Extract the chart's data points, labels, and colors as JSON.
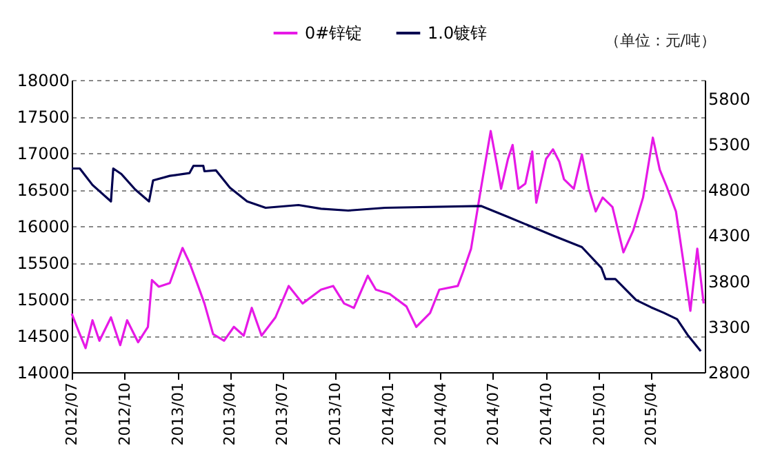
{
  "chart_data": {
    "type": "line",
    "legend": "top",
    "grid": "y",
    "line_style": "solid",
    "marker": "none",
    "annotations": [
      "（单位：元/吨）"
    ],
    "xlim": [
      "2012-07-01",
      "2015-07-03"
    ],
    "xticks": [
      {
        "value": "2012-07-01",
        "label": "2012/07"
      },
      {
        "value": "2012-10-01",
        "label": "2012/10"
      },
      {
        "value": "2013-01-01",
        "label": "2013/01"
      },
      {
        "value": "2013-04-01",
        "label": "2013/04"
      },
      {
        "value": "2013-07-01",
        "label": "2013/07"
      },
      {
        "value": "2013-10-01",
        "label": "2013/10"
      },
      {
        "value": "2014-01-01",
        "label": "2014/01"
      },
      {
        "value": "2014-04-01",
        "label": "2014/04"
      },
      {
        "value": "2014-07-01",
        "label": "2014/07"
      },
      {
        "value": "2014-10-01",
        "label": "2014/10"
      },
      {
        "value": "2015-01-01",
        "label": "2015/01"
      },
      {
        "value": "2015-04-01",
        "label": "2015/04"
      }
    ],
    "ylim": [
      14000,
      18000
    ],
    "yticks": [
      14000,
      14500,
      15000,
      15500,
      16000,
      16500,
      17000,
      17500,
      18000
    ],
    "y2lim": [
      2800,
      6000
    ],
    "y2ticks": [
      2800,
      3300,
      3800,
      4300,
      4800,
      5300,
      5800
    ],
    "series": [
      {
        "name": "0#锌锭",
        "color": "#e619e6",
        "x": [
          "2012-07-01",
          "2012-07-13",
          "2012-07-25",
          "2012-08-06",
          "2012-08-18",
          "2012-09-07",
          "2012-09-23",
          "2012-10-05",
          "2012-10-24",
          "2012-11-10",
          "2012-11-17",
          "2012-11-29",
          "2012-12-18",
          "2013-01-09",
          "2013-01-21",
          "2013-02-05",
          "2013-02-16",
          "2013-03-03",
          "2013-03-22",
          "2013-04-08",
          "2013-04-25",
          "2013-05-09",
          "2013-05-26",
          "2013-06-19",
          "2013-07-12",
          "2013-08-05",
          "2013-09-06",
          "2013-09-27",
          "2013-10-16",
          "2013-11-02",
          "2013-11-26",
          "2013-12-10",
          "2014-01-03",
          "2014-02-01",
          "2014-02-18",
          "2014-03-14",
          "2014-03-30",
          "2014-05-01",
          "2014-05-10",
          "2014-05-24",
          "2014-06-10",
          "2014-06-27",
          "2014-07-08",
          "2014-07-15",
          "2014-07-27",
          "2014-08-04",
          "2014-08-14",
          "2014-08-26",
          "2014-09-07",
          "2014-09-14",
          "2014-10-01",
          "2014-10-13",
          "2014-10-24",
          "2014-11-01",
          "2014-11-18",
          "2014-12-02",
          "2014-12-14",
          "2014-12-26",
          "2015-01-07",
          "2015-01-24",
          "2015-02-12",
          "2015-03-01",
          "2015-03-18",
          "2015-04-04",
          "2015-04-16",
          "2015-04-28",
          "2015-05-14",
          "2015-05-26",
          "2015-06-08",
          "2015-06-20",
          "2015-07-01"
        ],
        "values": [
          14800,
          14560,
          14330,
          14710,
          14430,
          14750,
          14370,
          14710,
          14410,
          14620,
          15260,
          15170,
          15220,
          15700,
          15500,
          15180,
          14940,
          14520,
          14430,
          14620,
          14500,
          14880,
          14500,
          14750,
          15180,
          14940,
          15130,
          15180,
          14940,
          14880,
          15320,
          15130,
          15070,
          14900,
          14620,
          14810,
          15130,
          15180,
          15370,
          15690,
          16510,
          17300,
          16830,
          16510,
          16920,
          17110,
          16510,
          16580,
          17020,
          16320,
          16920,
          17050,
          16880,
          16640,
          16510,
          16980,
          16510,
          16200,
          16390,
          16260,
          15640,
          15940,
          16390,
          17210,
          16770,
          16540,
          16200,
          15560,
          14840,
          15690,
          14940
        ]
      },
      {
        "name": "1.0镀锌",
        "color": "#000050",
        "axis": "y2",
        "x": [
          "2012-07-01",
          "2012-07-15",
          "2012-08-06",
          "2012-09-07",
          "2012-09-11",
          "2012-09-25",
          "2012-10-19",
          "2012-11-12",
          "2012-11-19",
          "2012-12-18",
          "2013-01-21",
          "2013-01-28",
          "2013-02-14",
          "2013-02-16",
          "2013-03-08",
          "2013-04-01",
          "2013-05-01",
          "2013-06-02",
          "2013-07-29",
          "2013-09-06",
          "2013-10-23",
          "2013-12-26",
          "2014-06-10",
          "2014-07-27",
          "2014-10-15",
          "2014-12-02",
          "2015-01-05",
          "2015-01-12",
          "2015-01-29",
          "2015-03-06",
          "2015-04-01",
          "2015-04-23",
          "2015-05-16",
          "2015-06-03",
          "2015-06-26"
        ],
        "values": [
          5030,
          5030,
          4850,
          4670,
          5030,
          4970,
          4800,
          4670,
          4900,
          4950,
          4980,
          5060,
          5060,
          5000,
          5010,
          4820,
          4670,
          4600,
          4630,
          4590,
          4570,
          4600,
          4620,
          4500,
          4290,
          4170,
          3940,
          3820,
          3820,
          3590,
          3510,
          3450,
          3380,
          3210,
          3030
        ]
      }
    ]
  }
}
